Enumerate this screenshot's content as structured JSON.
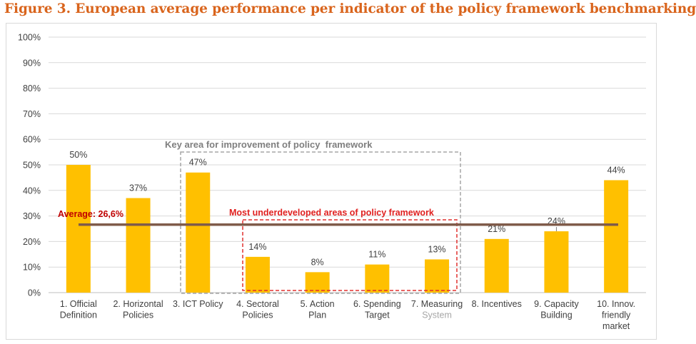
{
  "title": "Figure 3. European average performance per indicator of the policy framework benchmarking",
  "chart_data": {
    "type": "bar",
    "categories": [
      [
        "1. Official",
        "Definition"
      ],
      [
        "2. Horizontal",
        "Policies"
      ],
      [
        "3. ICT Policy"
      ],
      [
        "4. Sectoral",
        "Policies"
      ],
      [
        "5. Action",
        "Plan"
      ],
      [
        "6. Spending",
        "Target"
      ],
      [
        "7. Measuring",
        "System"
      ],
      [
        "8. Incentives"
      ],
      [
        "9. Capacity",
        "Building"
      ],
      [
        "10. Innov.",
        "friendly",
        "market"
      ]
    ],
    "values": [
      50,
      37,
      47,
      14,
      8,
      11,
      13,
      21,
      24,
      44
    ],
    "value_labels": [
      "50%",
      "37%",
      "47%",
      "14%",
      "8%",
      "11%",
      "13%",
      "21%",
      "24%",
      "44%"
    ],
    "yticks": [
      "0%",
      "10%",
      "20%",
      "30%",
      "40%",
      "50%",
      "60%",
      "70%",
      "80%",
      "90%",
      "100%"
    ],
    "ylim": [
      0,
      100
    ],
    "grid": true,
    "average": {
      "value": 26.6,
      "label": "Average: 26,6%"
    },
    "annotations": {
      "key_area": "Key area for improvement of policy  framework",
      "underdeveloped": "Most underdeveloped areas of policy framework"
    },
    "colors": {
      "bar": "#FFC000",
      "average_line": "#7F5B4A",
      "key_area_box": "#A6A6A6",
      "underdeveloped_box": "#E0302F",
      "average_label": "#C00000",
      "underdeveloped_label": "#E0201F",
      "key_area_label": "#7F7F7F",
      "text": "#404040",
      "grid": "#D9D9D9",
      "faded_label": "#A6A6A6"
    }
  }
}
